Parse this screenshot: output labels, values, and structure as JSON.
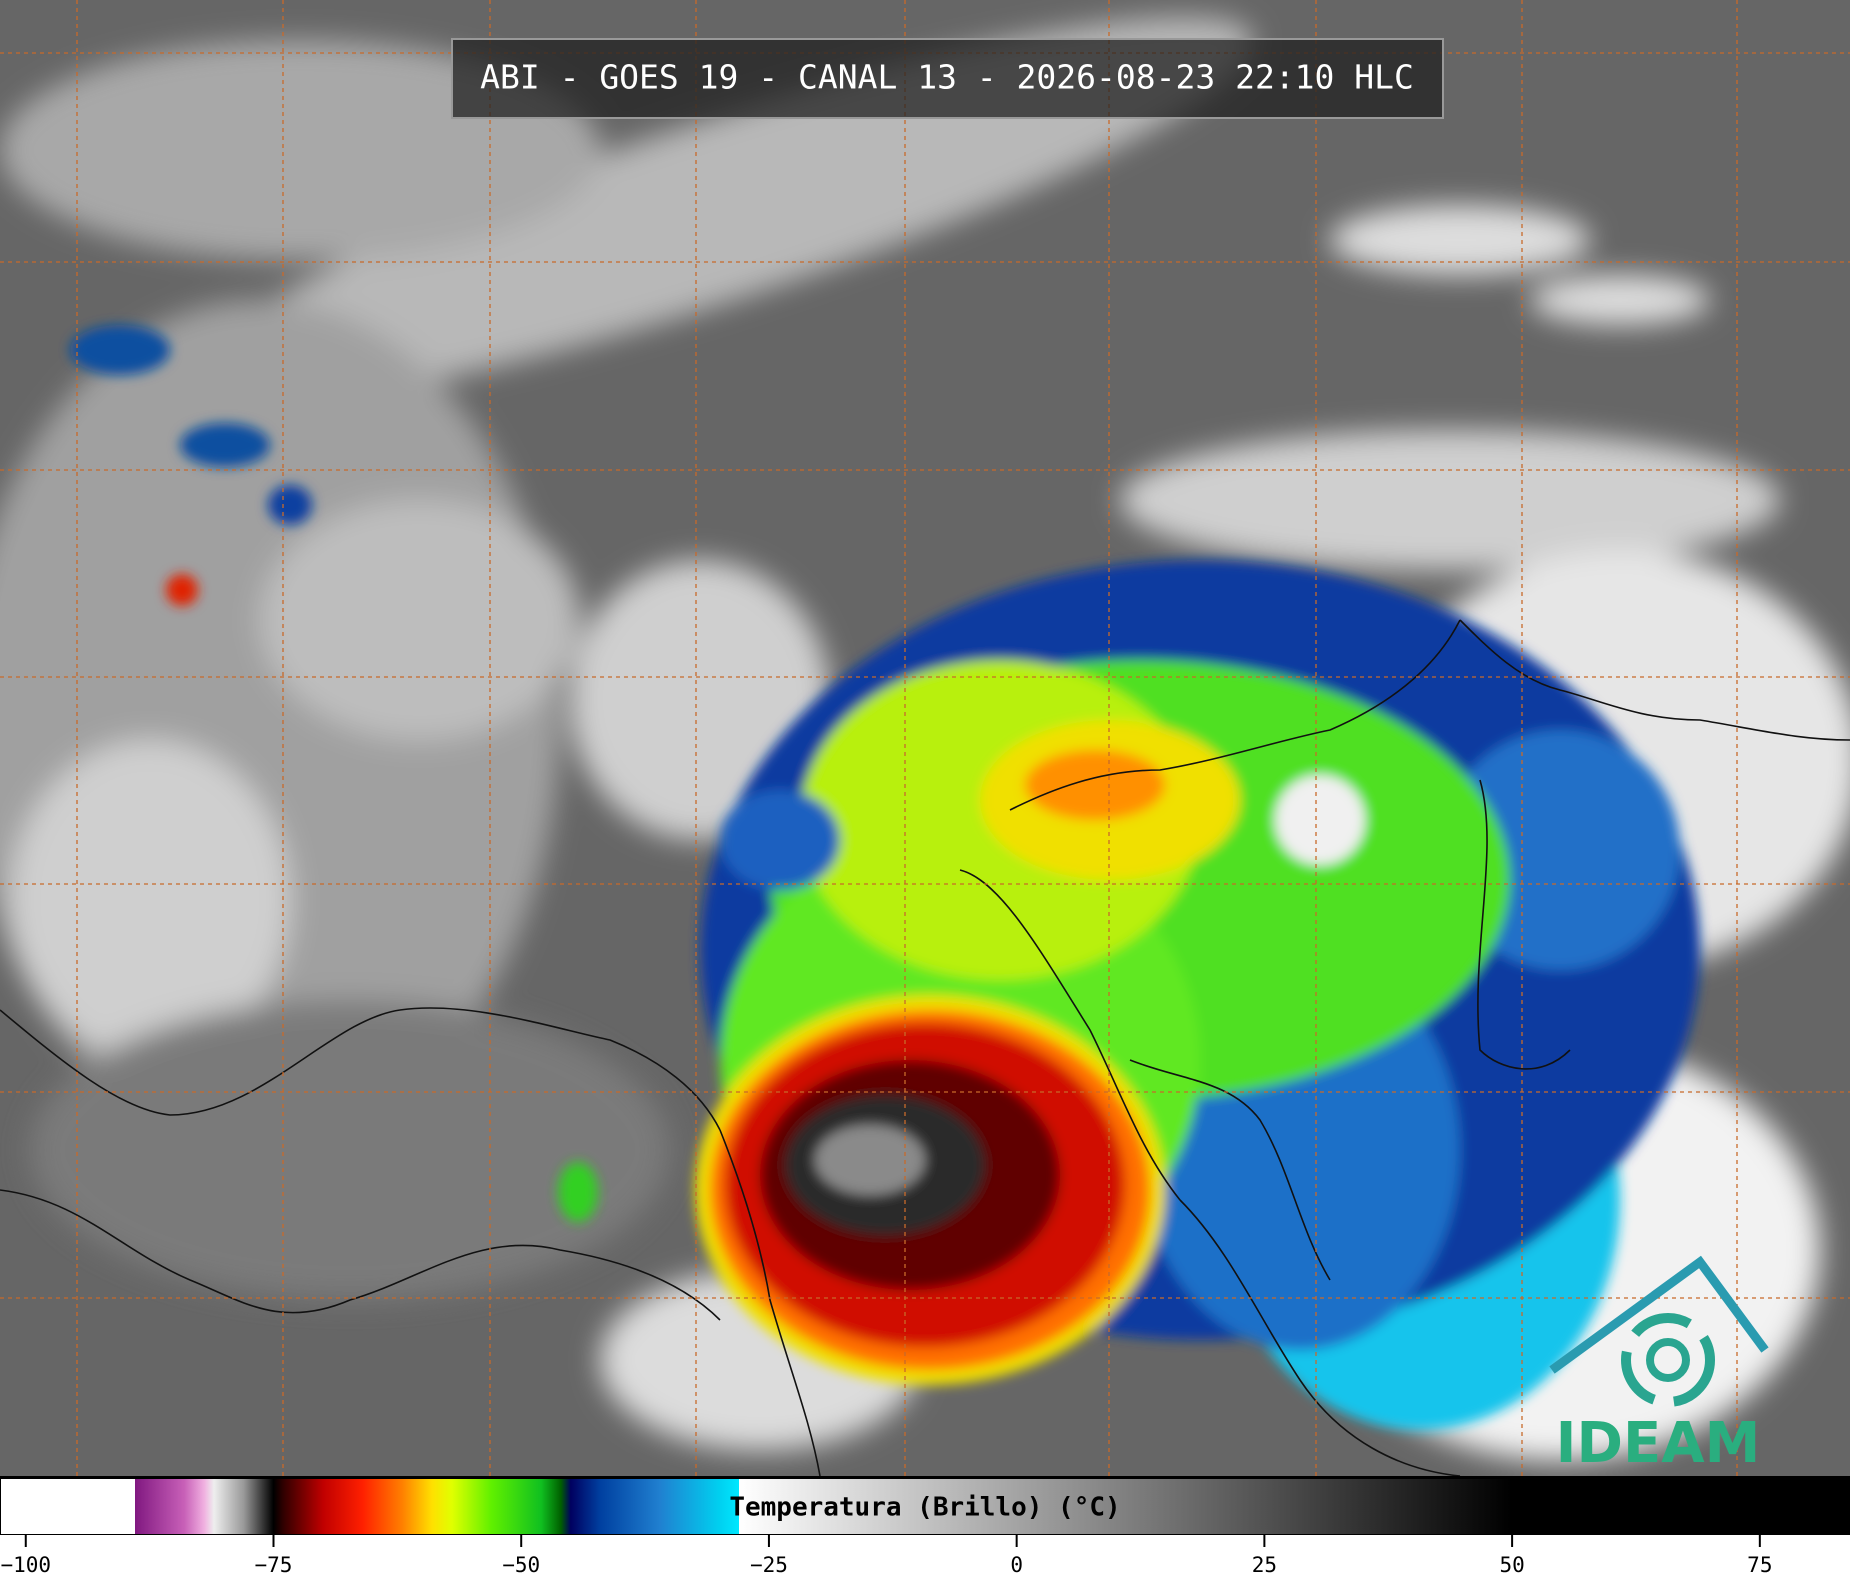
{
  "title": "ABI - GOES 19 - CANAL 13 - 2026-08-23 22:10 HLC",
  "logo": "IDEAM",
  "colorbar": {
    "label": "Temperatura (Brillo) (°C)",
    "xlim": [
      -102.6,
      84.1
    ],
    "xticks": [
      {
        "value": -100,
        "label": "−100"
      },
      {
        "value": -75,
        "label": "−75"
      },
      {
        "value": -50,
        "label": "−50"
      },
      {
        "value": -25,
        "label": "−25"
      },
      0,
      25,
      50,
      75
    ],
    "stops": [
      {
        "value": -102.6,
        "color": "#ffffff"
      },
      {
        "value": -89,
        "color": "#ffffff"
      },
      {
        "value": -89,
        "color": "#801880"
      },
      {
        "value": -84,
        "color": "#c860b8"
      },
      {
        "value": -82,
        "color": "#f0b0e0"
      },
      {
        "value": -81,
        "color": "#eeeeee"
      },
      {
        "value": -78,
        "color": "#999999"
      },
      {
        "value": -76,
        "color": "#333333"
      },
      {
        "value": -75,
        "color": "#000000"
      },
      {
        "value": -74,
        "color": "#300000"
      },
      {
        "value": -70,
        "color": "#c00000"
      },
      {
        "value": -66,
        "color": "#ff2000"
      },
      {
        "value": -62,
        "color": "#ff8000"
      },
      {
        "value": -59,
        "color": "#ffe000"
      },
      {
        "value": -57,
        "color": "#e0ff00"
      },
      {
        "value": -53,
        "color": "#60f000"
      },
      {
        "value": -48,
        "color": "#10c020"
      },
      {
        "value": -46,
        "color": "#006000"
      },
      {
        "value": -45,
        "color": "#000060"
      },
      {
        "value": -42,
        "color": "#0040a0"
      },
      {
        "value": -36,
        "color": "#2080d0"
      },
      {
        "value": -30,
        "color": "#00d0f0"
      },
      {
        "value": -28,
        "color": "#00e8ff"
      },
      {
        "value": -28,
        "color": "#ffffff"
      },
      {
        "value": 50,
        "color": "#000000"
      },
      {
        "value": 84.1,
        "color": "#000000"
      }
    ]
  }
}
